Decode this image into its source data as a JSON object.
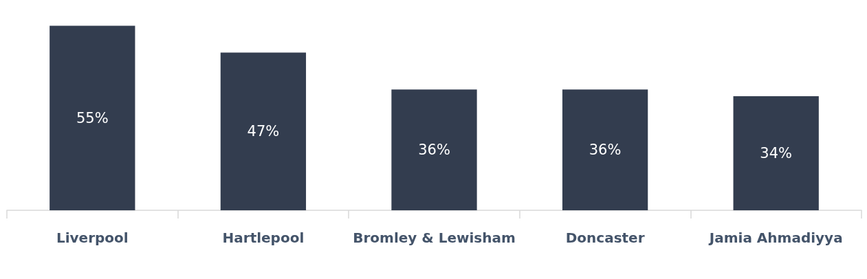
{
  "chart_data": {
    "type": "bar",
    "categories": [
      "Liverpool",
      "Hartlepool",
      "Bromley & Lewisham",
      "Doncaster",
      "Jamia Ahmadiyya"
    ],
    "values": [
      55,
      47,
      36,
      36,
      34
    ],
    "value_labels": [
      "55%",
      "47%",
      "36%",
      "36%",
      "34%"
    ],
    "color": "#333d4f"
  }
}
